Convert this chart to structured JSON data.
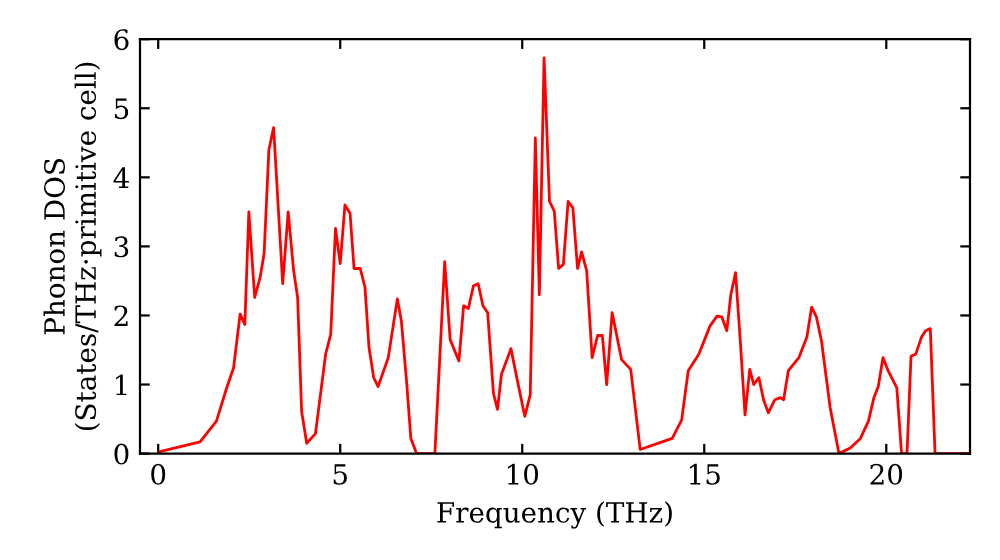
{
  "chart_data": {
    "type": "line",
    "xlabel": "Frequency (THz)",
    "ylabel": "Phonon DOS\n(States/THz·primitive cell)",
    "xlim": [
      -0.5,
      22.3
    ],
    "ylim": [
      0,
      6
    ],
    "xticks": [
      0,
      5,
      10,
      15,
      20
    ],
    "yticks": [
      0,
      1,
      2,
      3,
      4,
      5,
      6
    ],
    "grid": false,
    "line_style": "solid",
    "marker": "none",
    "series": [
      {
        "color": "#ff0000",
        "x": [
          0.05,
          1.15,
          1.6,
          1.88,
          2.07,
          2.25,
          2.38,
          2.49,
          2.65,
          2.8,
          2.91,
          3.04,
          3.17,
          3.42,
          3.57,
          3.72,
          3.83,
          3.94,
          4.08,
          4.32,
          4.6,
          4.74,
          4.87,
          5.0,
          5.13,
          5.27,
          5.38,
          5.55,
          5.68,
          5.79,
          5.92,
          6.04,
          6.32,
          6.57,
          6.68,
          6.83,
          6.94,
          7.1,
          7.6,
          7.87,
          8.02,
          8.26,
          8.39,
          8.52,
          8.66,
          8.79,
          8.92,
          9.05,
          9.21,
          9.32,
          9.43,
          9.69,
          9.85,
          10.07,
          10.22,
          10.36,
          10.47,
          10.6,
          10.75,
          10.88,
          11.0,
          11.13,
          11.26,
          11.39,
          11.52,
          11.63,
          11.77,
          11.92,
          12.07,
          12.2,
          12.32,
          12.47,
          12.73,
          12.98,
          13.24,
          14.12,
          14.38,
          14.56,
          14.85,
          15.07,
          15.16,
          15.35,
          15.48,
          15.62,
          15.73,
          15.86,
          15.99,
          16.12,
          16.25,
          16.36,
          16.5,
          16.63,
          16.76,
          16.94,
          17.09,
          17.18,
          17.31,
          17.6,
          17.82,
          17.95,
          18.08,
          18.22,
          18.46,
          18.7,
          19.01,
          19.29,
          19.51,
          19.66,
          19.78,
          19.91,
          20.05,
          20.29,
          20.42,
          20.57,
          20.68,
          20.81,
          20.97,
          21.08,
          21.21,
          21.34,
          22.3
        ],
        "values": [
          0.03,
          0.17,
          0.47,
          0.95,
          1.24,
          2.02,
          1.87,
          3.5,
          2.26,
          2.55,
          2.9,
          4.4,
          4.72,
          2.46,
          3.5,
          2.65,
          2.26,
          0.61,
          0.15,
          0.29,
          1.44,
          1.73,
          3.26,
          2.75,
          3.6,
          3.48,
          2.68,
          2.68,
          2.41,
          1.54,
          1.1,
          0.97,
          1.39,
          2.24,
          1.92,
          1.0,
          0.22,
          0.0,
          0.0,
          2.78,
          1.65,
          1.34,
          2.14,
          2.1,
          2.43,
          2.46,
          2.14,
          2.04,
          0.87,
          0.64,
          1.15,
          1.52,
          1.1,
          0.54,
          0.85,
          4.57,
          2.3,
          5.73,
          3.65,
          3.51,
          2.68,
          2.74,
          3.65,
          3.56,
          2.68,
          2.92,
          2.65,
          1.39,
          1.71,
          1.71,
          1.0,
          2.04,
          1.36,
          1.22,
          0.06,
          0.22,
          0.49,
          1.2,
          1.44,
          1.73,
          1.85,
          1.99,
          1.98,
          1.78,
          2.3,
          2.62,
          1.63,
          0.56,
          1.22,
          1.0,
          1.1,
          0.78,
          0.59,
          0.78,
          0.81,
          0.78,
          1.2,
          1.39,
          1.69,
          2.12,
          1.98,
          1.63,
          0.66,
          0.0,
          0.08,
          0.22,
          0.47,
          0.81,
          0.97,
          1.39,
          1.2,
          0.95,
          0.0,
          0.0,
          1.41,
          1.44,
          1.69,
          1.78,
          1.81,
          0.0,
          0.0
        ]
      }
    ]
  }
}
